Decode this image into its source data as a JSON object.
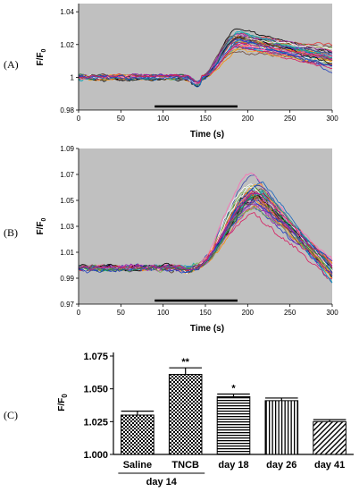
{
  "panels": {
    "a": "(A)",
    "b": "(B)",
    "c": "(C)"
  },
  "colors": {
    "plot_bg": "#c0c0c0",
    "trace_palette": [
      "#1f3fbf",
      "#d81b60",
      "#2e7d32",
      "#8e24aa",
      "#f9a825",
      "#00acc1",
      "#5d4037",
      "#e53935",
      "#3949ab",
      "#7cb342",
      "#fb8c00",
      "#000000",
      "#ab47bc",
      "#26a69a",
      "#ffffff",
      "#ff69b4",
      "#1565c0",
      "#6d4c41"
    ],
    "bar_fill": "#ffffff",
    "bar_stroke": "#000000",
    "stim_bar": "#000000"
  },
  "chart_data": [
    {
      "type": "line",
      "panel": "A",
      "xlabel": "Time (s)",
      "ylabel": "F/F0",
      "ylabel_main": "F/F",
      "ylabel_sub": "0",
      "xlim": [
        0,
        300
      ],
      "ylim": [
        0.98,
        1.045
      ],
      "xticks": [
        0,
        50,
        100,
        150,
        200,
        250,
        300
      ],
      "yticks": [
        {
          "value": 0.98,
          "label": "0.98"
        },
        {
          "value": 1.0,
          "label": "1"
        },
        {
          "value": 1.02,
          "label": "1.02"
        },
        {
          "value": 1.04,
          "label": "1.04"
        }
      ],
      "stimulus": [
        90,
        188
      ],
      "traces": {
        "count": 38,
        "baseline": 1.0,
        "start_rise": 145,
        "peak_time": 190,
        "peak_mean": 1.022,
        "peak_spread": 0.011,
        "end_mean": 1.012,
        "end_spread": 0.009,
        "dip_time": 140,
        "dip_depth": 0.004,
        "noise": 0.0012
      }
    },
    {
      "type": "line",
      "panel": "B",
      "xlabel": "Time (s)",
      "ylabel": "F/F0",
      "ylabel_main": "F/F",
      "ylabel_sub": "0",
      "xlim": [
        0,
        300
      ],
      "ylim": [
        0.97,
        1.09
      ],
      "xticks": [
        0,
        50,
        100,
        150,
        200,
        250,
        300
      ],
      "yticks": [
        {
          "value": 0.97,
          "label": "0.97"
        },
        {
          "value": 0.99,
          "label": "0.99"
        },
        {
          "value": 1.01,
          "label": "1.01"
        },
        {
          "value": 1.03,
          "label": "1.03"
        },
        {
          "value": 1.05,
          "label": "1.05"
        },
        {
          "value": 1.07,
          "label": "1.07"
        },
        {
          "value": 1.09,
          "label": "1.09"
        }
      ],
      "stimulus": [
        90,
        188
      ],
      "traces": {
        "count": 40,
        "baseline": 0.998,
        "start_rise": 135,
        "peak_time": 212,
        "peak_mean": 1.055,
        "peak_spread": 0.018,
        "end_mean": 0.995,
        "end_spread": 0.012,
        "dip_time": 130,
        "dip_depth": 0.002,
        "noise": 0.0022
      }
    },
    {
      "type": "bar",
      "panel": "C",
      "ylabel": "F/F0",
      "ylabel_main": "F/F",
      "ylabel_sub": "0",
      "ylim": [
        1.0,
        1.075
      ],
      "yticks": [
        {
          "value": 1.0,
          "label": "1.000"
        },
        {
          "value": 1.025,
          "label": "1.025"
        },
        {
          "value": 1.05,
          "label": "1.050"
        },
        {
          "value": 1.075,
          "label": "1.075"
        }
      ],
      "categories": [
        "Saline",
        "TNCB",
        "day 18",
        "day 26",
        "day 41"
      ],
      "group_label": "day 14",
      "values": [
        1.03,
        1.061,
        1.044,
        1.041,
        1.025
      ],
      "errors": [
        0.003,
        0.005,
        0.002,
        0.002,
        0.0015
      ],
      "patterns": [
        "checker",
        "checker",
        "hstripe",
        "vstripe",
        "diag"
      ],
      "significance": [
        "",
        "**",
        "*",
        "",
        ""
      ]
    }
  ]
}
